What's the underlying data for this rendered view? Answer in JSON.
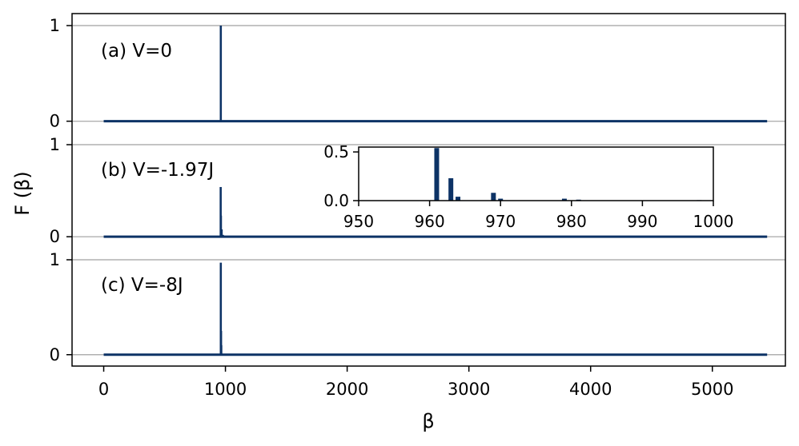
{
  "chart_data": {
    "type": "bar",
    "ylabel": "F (β)",
    "xlabel": "β",
    "xlim": [
      -260,
      5600
    ],
    "xticks": [
      0,
      1000,
      2000,
      3000,
      4000,
      5000
    ],
    "xtick_labels": [
      "0",
      "1000",
      "2000",
      "3000",
      "4000",
      "5000"
    ],
    "line_range": [
      0,
      5450
    ],
    "colors": {
      "series": "#0d3366",
      "grid": "#b0b0b0",
      "axes": "#000000"
    },
    "grid": "horizontal",
    "panels": [
      {
        "label": "(a) V=0",
        "ylim": [
          -0.12,
          1.0
        ],
        "yticks": [
          0,
          1
        ],
        "ytick_labels": [
          "0",
          "1"
        ],
        "values": [
          [
            962,
            1.0
          ]
        ]
      },
      {
        "label": "(b) V=-1.97J",
        "ylim": [
          -0.12,
          1.0
        ],
        "yticks": [
          0,
          1
        ],
        "ytick_labels": [
          "0",
          "1"
        ],
        "values": [
          [
            961,
            0.54
          ],
          [
            963,
            0.23
          ],
          [
            964,
            0.04
          ],
          [
            969,
            0.08
          ],
          [
            970,
            0.02
          ],
          [
            979,
            0.02
          ],
          [
            981,
            0.01
          ],
          [
            998,
            0.005
          ]
        ]
      },
      {
        "label": "(c) V=-8J",
        "ylim": [
          -0.12,
          1.0
        ],
        "yticks": [
          0,
          1
        ],
        "ytick_labels": [
          "0",
          "1"
        ],
        "values": [
          [
            962,
            0.97
          ],
          [
            964,
            0.25
          ],
          [
            966,
            0.1
          ],
          [
            20,
            0.01
          ],
          [
            40,
            0.01
          ]
        ]
      }
    ],
    "inset": {
      "panel": 1,
      "xlim": [
        950,
        1000
      ],
      "ylim": [
        0,
        0.55
      ],
      "xticks": [
        950,
        960,
        970,
        980,
        990,
        1000
      ],
      "xtick_labels": [
        "950",
        "960",
        "970",
        "980",
        "990",
        "1000"
      ],
      "yticks": [
        0,
        0.5
      ],
      "ytick_labels": [
        "0.0",
        "0.5"
      ],
      "grid": "none"
    }
  }
}
